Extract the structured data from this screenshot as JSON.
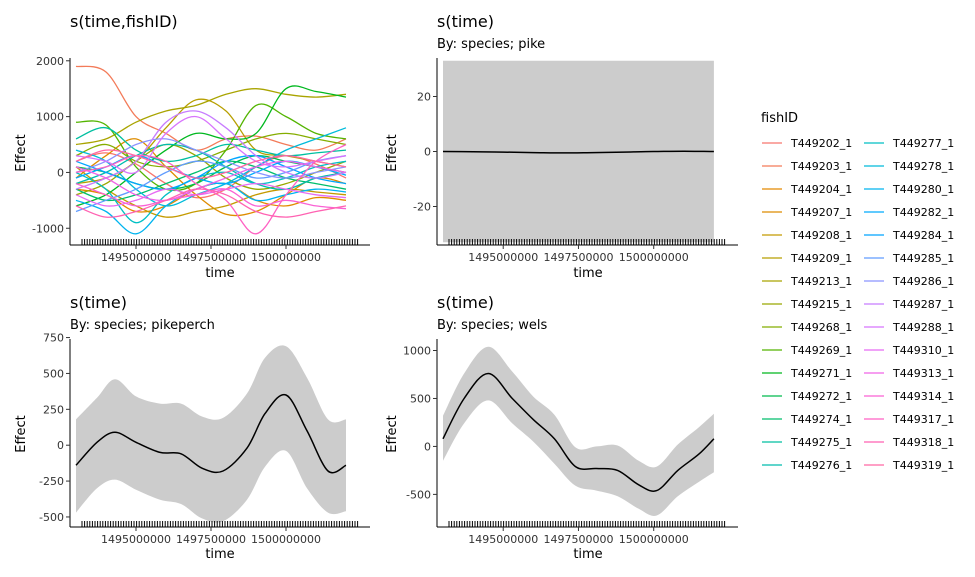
{
  "chart_data": [
    {
      "type": "line",
      "title": "s(time,fishID)",
      "subtitle": "",
      "xlabel": "time",
      "ylabel": "Effect",
      "xlim": [
        1492800000,
        1502800000
      ],
      "ylim": [
        -1300,
        2050
      ],
      "xticks": [
        1495000000,
        1497500000,
        1500000000
      ],
      "xtick_labels": [
        "1495000000",
        "1497500000",
        "1500000000"
      ],
      "yticks": [
        -1000,
        0,
        1000,
        2000
      ],
      "ytick_labels": [
        "-1000",
        "0",
        "1000",
        "2000"
      ],
      "rug": true,
      "series_x": [
        1493000000,
        1494000000,
        1495000000,
        1496000000,
        1497000000,
        1498000000,
        1499000000,
        1500000000,
        1501000000,
        1502000000
      ],
      "series": [
        {
          "name": "T449202_1",
          "values": [
            200,
            350,
            150,
            -200,
            -450,
            -300,
            100,
            300,
            150,
            -100
          ]
        },
        {
          "name": "T449203_1",
          "values": [
            1900,
            1800,
            1000,
            700,
            400,
            600,
            650,
            500,
            400,
            600
          ]
        },
        {
          "name": "T449204_1",
          "values": [
            -300,
            -400,
            -700,
            -600,
            -300,
            -200,
            -500,
            -600,
            -450,
            -500
          ]
        },
        {
          "name": "T449207_1",
          "values": [
            -100,
            300,
            600,
            100,
            -400,
            -750,
            -700,
            -400,
            -100,
            -200
          ]
        },
        {
          "name": "T449208_1",
          "values": [
            100,
            -300,
            -600,
            -800,
            -700,
            -600,
            -400,
            -300,
            -350,
            -400
          ]
        },
        {
          "name": "T449209_1",
          "values": [
            -200,
            -100,
            200,
            800,
            1300,
            1100,
            400,
            300,
            200,
            100
          ]
        },
        {
          "name": "T449213_1",
          "values": [
            500,
            600,
            900,
            1100,
            1200,
            1400,
            1500,
            1400,
            1350,
            1400
          ]
        },
        {
          "name": "T449215_1",
          "values": [
            -400,
            -200,
            200,
            500,
            300,
            -100,
            -300,
            -200,
            0,
            200
          ]
        },
        {
          "name": "T449268_1",
          "values": [
            300,
            500,
            200,
            100,
            200,
            400,
            600,
            700,
            600,
            500
          ]
        },
        {
          "name": "T449269_1",
          "values": [
            900,
            850,
            100,
            -300,
            -200,
            400,
            1200,
            1000,
            700,
            600
          ]
        },
        {
          "name": "T449271_1",
          "values": [
            -600,
            -400,
            0,
            400,
            700,
            600,
            700,
            1500,
            1450,
            1350
          ]
        },
        {
          "name": "T449272_1",
          "values": [
            100,
            0,
            -200,
            -300,
            -200,
            100,
            300,
            200,
            100,
            0
          ]
        },
        {
          "name": "T449274_1",
          "values": [
            -300,
            -500,
            -400,
            -200,
            0,
            200,
            100,
            -100,
            -200,
            -300
          ]
        },
        {
          "name": "T449275_1",
          "values": [
            600,
            800,
            400,
            200,
            300,
            500,
            400,
            300,
            350,
            400
          ]
        },
        {
          "name": "T449276_1",
          "values": [
            -200,
            0,
            300,
            500,
            400,
            100,
            -200,
            -300,
            -100,
            0
          ]
        },
        {
          "name": "T449277_1",
          "values": [
            0,
            -300,
            -900,
            -400,
            -100,
            0,
            -200,
            -100,
            100,
            200
          ]
        },
        {
          "name": "T449278_1",
          "values": [
            400,
            200,
            -300,
            -600,
            -400,
            -200,
            100,
            400,
            600,
            800
          ]
        },
        {
          "name": "T449280_1",
          "values": [
            -500,
            -700,
            -1100,
            -600,
            -300,
            -200,
            -500,
            -400,
            -300,
            -350
          ]
        },
        {
          "name": "T449282_1",
          "values": [
            -100,
            100,
            300,
            100,
            -100,
            -200,
            0,
            200,
            100,
            -50
          ]
        },
        {
          "name": "T449284_1",
          "values": [
            200,
            0,
            -200,
            -300,
            -100,
            200,
            300,
            100,
            -100,
            -200
          ]
        },
        {
          "name": "T449285_1",
          "values": [
            -700,
            -500,
            -300,
            0,
            200,
            100,
            -100,
            0,
            200,
            300
          ]
        },
        {
          "name": "T449286_1",
          "values": [
            0,
            200,
            500,
            600,
            400,
            200,
            0,
            -100,
            0,
            100
          ]
        },
        {
          "name": "T449287_1",
          "values": [
            -300,
            -100,
            200,
            900,
            1100,
            800,
            300,
            0,
            -100,
            0
          ]
        },
        {
          "name": "T449288_1",
          "values": [
            300,
            200,
            0,
            700,
            1000,
            600,
            200,
            100,
            200,
            300
          ]
        },
        {
          "name": "T449310_1",
          "values": [
            -400,
            -600,
            -500,
            -300,
            -400,
            -300,
            -200,
            -300,
            -400,
            -450
          ]
        },
        {
          "name": "T449313_1",
          "values": [
            100,
            -100,
            -400,
            -500,
            -300,
            -100,
            100,
            200,
            100,
            0
          ]
        },
        {
          "name": "T449314_1",
          "values": [
            -200,
            -400,
            -600,
            -500,
            -400,
            -300,
            -600,
            -500,
            -600,
            -650
          ]
        },
        {
          "name": "T449317_1",
          "values": [
            0,
            100,
            300,
            200,
            -200,
            -500,
            -1100,
            -400,
            200,
            500
          ]
        },
        {
          "name": "T449318_1",
          "values": [
            -600,
            -800,
            -700,
            -500,
            -300,
            -400,
            -700,
            -800,
            -700,
            -600
          ]
        },
        {
          "name": "T449319_1",
          "values": [
            200,
            400,
            300,
            100,
            -100,
            0,
            200,
            300,
            200,
            100
          ]
        }
      ],
      "colors": [
        "#F8766D",
        "#F37B59",
        "#E38900",
        "#DE8C00",
        "#C49A00",
        "#B79F00",
        "#A9A400",
        "#99A800",
        "#85AD00",
        "#53B400",
        "#00B81F",
        "#00BB4E",
        "#00BE6C",
        "#00BFA0",
        "#00BCAE",
        "#00BFC4",
        "#00BBDA",
        "#00B4EF",
        "#00ABFD",
        "#00A5FF",
        "#619CFF",
        "#8B93FF",
        "#C77CFF",
        "#D874FD",
        "#E76BF3",
        "#F164E7",
        "#FA62D4",
        "#FF61C3",
        "#FF62B2",
        "#FF67A4"
      ]
    },
    {
      "type": "line",
      "title": "s(time)",
      "subtitle": "By: species; pike",
      "xlabel": "time",
      "ylabel": "Effect",
      "xlim": [
        1492800000,
        1502800000
      ],
      "ylim": [
        -34,
        34
      ],
      "xticks": [
        1495000000,
        1497500000,
        1500000000
      ],
      "xtick_labels": [
        "1495000000",
        "1497500000",
        "1500000000"
      ],
      "yticks": [
        -20,
        0,
        20
      ],
      "ytick_labels": [
        "-20",
        "0",
        "20"
      ],
      "rug": true,
      "x": [
        1493000000,
        1494000000,
        1495000000,
        1496000000,
        1497000000,
        1498000000,
        1499000000,
        1500000000,
        1501000000,
        1502000000
      ],
      "values": [
        0,
        -0.1,
        -0.2,
        -0.4,
        -0.5,
        -0.4,
        -0.2,
        0,
        0.1,
        0
      ],
      "lower": [
        -33,
        -33,
        -33,
        -33,
        -33,
        -33,
        -33,
        -33,
        -33,
        -33
      ],
      "upper": [
        33,
        33,
        33,
        33,
        33,
        33,
        33,
        33,
        33,
        33
      ]
    },
    {
      "type": "line",
      "title": "s(time)",
      "subtitle": "By: species; pikeperch",
      "xlabel": "time",
      "ylabel": "Effect",
      "xlim": [
        1492800000,
        1502800000
      ],
      "ylim": [
        -570,
        740
      ],
      "xticks": [
        1495000000,
        1497500000,
        1500000000
      ],
      "xtick_labels": [
        "1495000000",
        "1497500000",
        "1500000000"
      ],
      "yticks": [
        -500,
        -250,
        0,
        250,
        500,
        750
      ],
      "ytick_labels": [
        "-500",
        "-250",
        "0",
        "250",
        "500",
        "750"
      ],
      "rug": true,
      "x": [
        1493000000,
        1493700000,
        1494300000,
        1495000000,
        1495800000,
        1496500000,
        1497200000,
        1497900000,
        1498700000,
        1499300000,
        1500000000,
        1500700000,
        1501400000,
        1502000000
      ],
      "values": [
        -140,
        20,
        90,
        20,
        -50,
        -60,
        -160,
        -180,
        -20,
        220,
        350,
        100,
        -180,
        -140
      ],
      "lower": [
        -470,
        -300,
        -240,
        -310,
        -380,
        -410,
        -510,
        -530,
        -380,
        -150,
        -40,
        -300,
        -470,
        -460
      ],
      "upper": [
        180,
        330,
        460,
        340,
        290,
        290,
        200,
        190,
        360,
        610,
        690,
        470,
        180,
        180
      ]
    },
    {
      "type": "line",
      "title": "s(time)",
      "subtitle": "By: species; wels",
      "xlabel": "time",
      "ylabel": "Effect",
      "xlim": [
        1492800000,
        1502800000
      ],
      "ylim": [
        -840,
        1120
      ],
      "xticks": [
        1495000000,
        1497500000,
        1500000000
      ],
      "xtick_labels": [
        "1495000000",
        "1497500000",
        "1500000000"
      ],
      "yticks": [
        -500,
        0,
        500,
        1000
      ],
      "ytick_labels": [
        "-500",
        "0",
        "500",
        "1000"
      ],
      "rug": true,
      "x": [
        1493000000,
        1493700000,
        1494500000,
        1495300000,
        1496000000,
        1496700000,
        1497400000,
        1498100000,
        1498800000,
        1499500000,
        1500100000,
        1500800000,
        1501500000,
        1502000000
      ],
      "values": [
        80,
        500,
        760,
        500,
        280,
        80,
        -210,
        -230,
        -250,
        -400,
        -460,
        -250,
        -80,
        80
      ],
      "lower": [
        -150,
        240,
        480,
        240,
        50,
        -180,
        -410,
        -460,
        -520,
        -650,
        -720,
        -520,
        -370,
        -270
      ],
      "upper": [
        320,
        760,
        1040,
        780,
        520,
        330,
        -10,
        0,
        10,
        -150,
        -210,
        20,
        200,
        340
      ]
    }
  ],
  "legend": {
    "title": "fishID",
    "placement": "right"
  }
}
